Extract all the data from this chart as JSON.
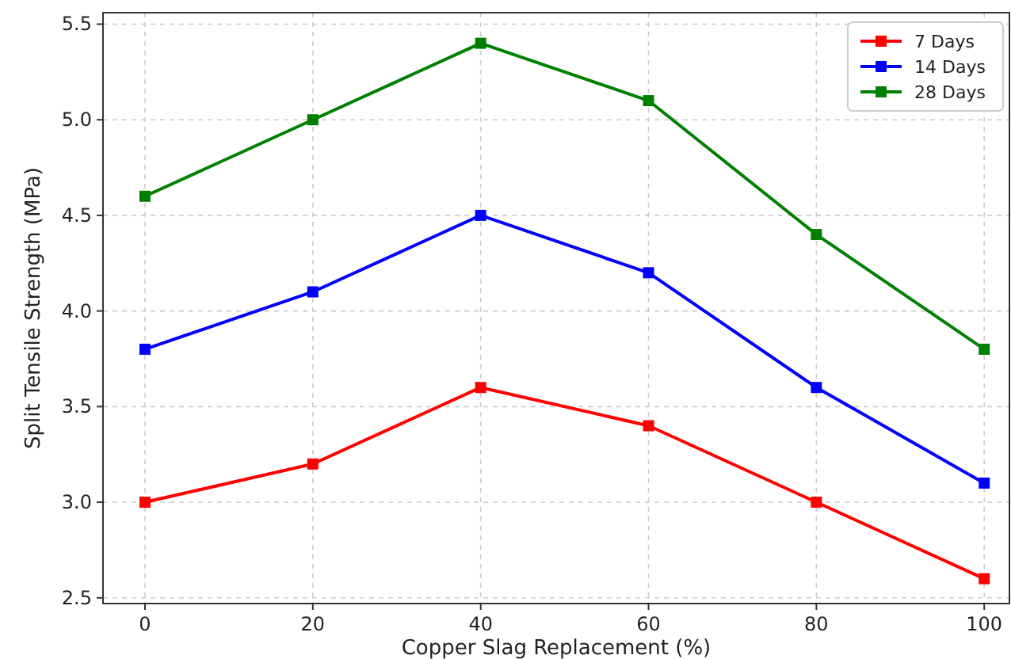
{
  "chart_data": {
    "type": "line",
    "xlabel": "Copper Slag Replacement (%)",
    "ylabel": "Split Tensile Strength (MPa)",
    "x": [
      0,
      20,
      40,
      60,
      80,
      100
    ],
    "series": [
      {
        "name": "7 Days",
        "color": "#ff0000",
        "values": [
          3.0,
          3.2,
          3.6,
          3.4,
          3.0,
          2.6
        ]
      },
      {
        "name": "14 Days",
        "color": "#0000ff",
        "values": [
          3.8,
          4.1,
          4.5,
          4.2,
          3.6,
          3.1
        ]
      },
      {
        "name": "28 Days",
        "color": "#008000",
        "values": [
          4.6,
          5.0,
          5.4,
          5.1,
          4.4,
          3.8
        ]
      }
    ],
    "xlim": [
      -5,
      103
    ],
    "ylim": [
      2.47,
      5.56
    ],
    "xticks": [
      0,
      20,
      40,
      60,
      80,
      100
    ],
    "yticks": [
      {
        "value": 2.5,
        "label": "2.5"
      },
      {
        "value": 3.0,
        "label": "3.0"
      },
      {
        "value": 3.5,
        "label": "3.5"
      },
      {
        "value": 4.0,
        "label": "4.0"
      },
      {
        "value": 4.5,
        "label": "4.5"
      },
      {
        "value": 5.0,
        "label": "5.0"
      },
      {
        "value": 5.5,
        "label": "5.5"
      }
    ],
    "grid": true,
    "legend": "top right",
    "marker": "square",
    "line_style": "solid"
  }
}
